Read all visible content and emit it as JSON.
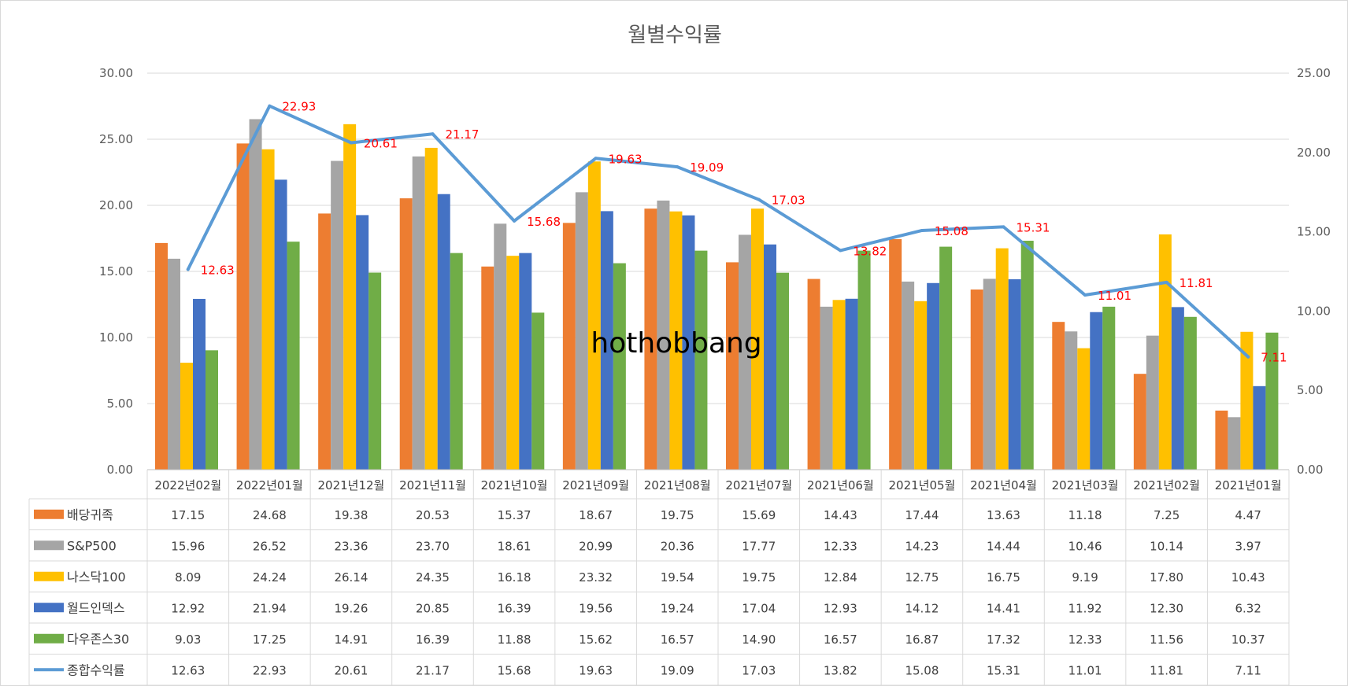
{
  "chart_data": {
    "type": "bar",
    "title": "월별수익률",
    "watermark": "hothobbang",
    "categories": [
      "2022년02월",
      "2022년01월",
      "2021년12월",
      "2021년11월",
      "2021년10월",
      "2021년09월",
      "2021년08월",
      "2021년07월",
      "2021년06월",
      "2021년05월",
      "2021년04월",
      "2021년03월",
      "2021년02월",
      "2021년01월"
    ],
    "series": [
      {
        "name": "배당귀족",
        "type": "bar",
        "color": "#ED7D31",
        "values": [
          17.15,
          24.68,
          19.38,
          20.53,
          15.37,
          18.67,
          19.75,
          15.69,
          14.43,
          17.44,
          13.63,
          11.18,
          7.25,
          4.47
        ],
        "labels": [
          "17.15",
          "24.68",
          "19.38",
          "20.53",
          "15.37",
          "18.67",
          "19.75",
          "15.69",
          "14.43",
          "17.44",
          "13.63",
          "11.18",
          "7.25",
          "4.47"
        ]
      },
      {
        "name": "S&P500",
        "type": "bar",
        "color": "#A5A5A5",
        "values": [
          15.96,
          26.52,
          23.36,
          23.7,
          18.61,
          20.99,
          20.36,
          17.77,
          12.33,
          14.23,
          14.44,
          10.46,
          10.14,
          3.97
        ],
        "labels": [
          "15.96",
          "26.52",
          "23.36",
          "23.70",
          "18.61",
          "20.99",
          "20.36",
          "17.77",
          "12.33",
          "14.23",
          "14.44",
          "10.46",
          "10.14",
          "3.97"
        ]
      },
      {
        "name": "나스닥100",
        "type": "bar",
        "color": "#FFC000",
        "values": [
          8.09,
          24.24,
          26.14,
          24.35,
          16.18,
          23.32,
          19.54,
          19.75,
          12.84,
          12.75,
          16.75,
          9.19,
          17.8,
          10.43
        ],
        "labels": [
          "8.09",
          "24.24",
          "26.14",
          "24.35",
          "16.18",
          "23.32",
          "19.54",
          "19.75",
          "12.84",
          "12.75",
          "16.75",
          "9.19",
          "17.80",
          "10.43"
        ]
      },
      {
        "name": "월드인덱스",
        "type": "bar",
        "color": "#4472C4",
        "values": [
          12.92,
          21.94,
          19.26,
          20.85,
          16.39,
          19.56,
          19.24,
          17.04,
          12.93,
          14.12,
          14.41,
          11.92,
          12.3,
          6.32
        ],
        "labels": [
          "12.92",
          "21.94",
          "19.26",
          "20.85",
          "16.39",
          "19.56",
          "19.24",
          "17.04",
          "12.93",
          "14.12",
          "14.41",
          "11.92",
          "12.30",
          "6.32"
        ]
      },
      {
        "name": "다우존스30",
        "type": "bar",
        "color": "#70AD47",
        "values": [
          9.03,
          17.25,
          14.91,
          16.39,
          11.88,
          15.62,
          16.57,
          14.9,
          16.57,
          16.87,
          17.32,
          12.33,
          11.56,
          10.37
        ],
        "labels": [
          "9.03",
          "17.25",
          "14.91",
          "16.39",
          "11.88",
          "15.62",
          "16.57",
          "14.90",
          "16.57",
          "16.87",
          "17.32",
          "12.33",
          "11.56",
          "10.37"
        ]
      },
      {
        "name": "종합수익률",
        "type": "line",
        "axis": "right",
        "color": "#5B9BD5",
        "values": [
          12.63,
          22.93,
          20.61,
          21.17,
          15.68,
          19.63,
          19.09,
          17.03,
          13.82,
          15.08,
          15.31,
          11.01,
          11.81,
          7.11
        ],
        "labels": [
          "12.63",
          "22.93",
          "20.61",
          "21.17",
          "15.68",
          "19.63",
          "19.09",
          "17.03",
          "13.82",
          "15.08",
          "15.31",
          "11.01",
          "11.81",
          "7.11"
        ]
      }
    ],
    "y_left": {
      "min": 0,
      "max": 30,
      "ticks": [
        "0.00",
        "5.00",
        "10.00",
        "15.00",
        "20.00",
        "25.00",
        "30.00"
      ]
    },
    "y_right": {
      "min": 0,
      "max": 25,
      "ticks": [
        "0.00",
        "5.00",
        "10.00",
        "15.00",
        "20.00",
        "25.00"
      ]
    },
    "grid": true,
    "legend": "data-table"
  }
}
